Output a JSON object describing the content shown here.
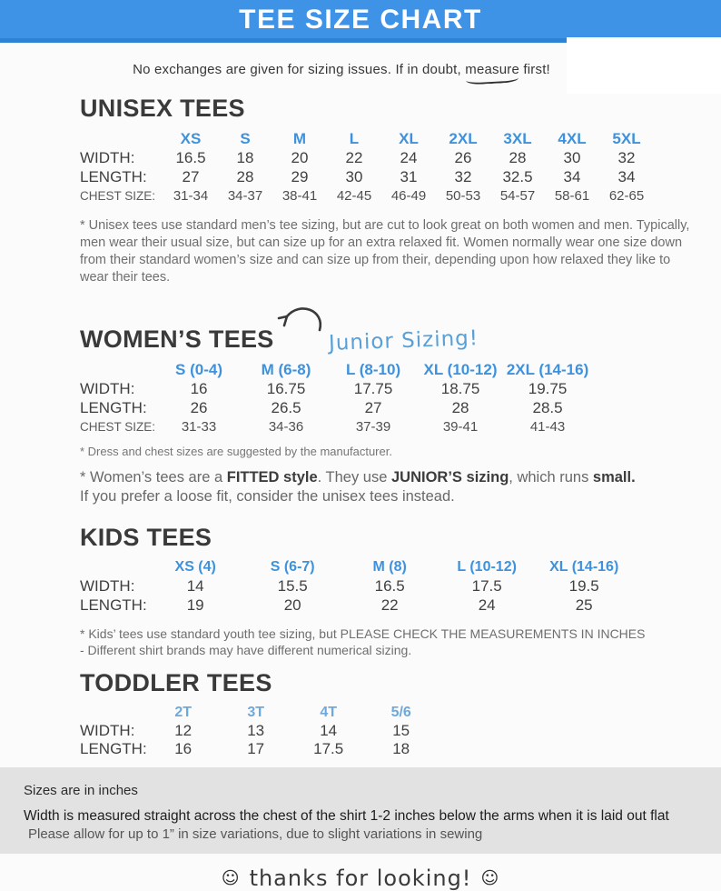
{
  "colors": {
    "header_blue": "#3e93e6",
    "header_strip_blue": "#2d82d6",
    "table_header_blue": "#3e92dd",
    "toddler_header_blue": "#6fa8dc",
    "annotation_blue": "#58a0d7",
    "heading_gray": "#3a3a3a",
    "note_gray": "#6e6e6e",
    "footer_bg_gray": "#e2e2e2"
  },
  "header": {
    "title": "TEE SIZE CHART"
  },
  "notice_parts": [
    {
      "t": "No exchanges are given for sizing issues. If in doubt, "
    },
    {
      "t": "measure",
      "u": true
    },
    {
      "t": " first!"
    }
  ],
  "sections": {
    "unisex": {
      "heading": "UNISEX TEES",
      "columns": [
        "XS",
        "S",
        "M",
        "L",
        "XL",
        "2XL",
        "3XL",
        "4XL",
        "5XL"
      ],
      "rows": [
        {
          "label": "WIDTH:",
          "values": [
            "16.5",
            "18",
            "20",
            "22",
            "24",
            "26",
            "28",
            "30",
            "32"
          ]
        },
        {
          "label": "LENGTH:",
          "values": [
            "27",
            "28",
            "29",
            "30",
            "31",
            "32",
            "32.5",
            "34",
            "34"
          ]
        },
        {
          "label": "CHEST SIZE:",
          "small": true,
          "values": [
            "31-34",
            "34-37",
            "38-41",
            "42-45",
            "46-49",
            "50-53",
            "54-57",
            "58-61",
            "62-65"
          ]
        }
      ],
      "note": "* Unisex tees use standard men’s tee sizing, but are cut to look great on both women and men. Typically, men wear their usual size, but can size up for an extra relaxed fit. Women normally wear one size down from their standard women’s size and can size up from their, depending upon how relaxed they like to wear their tees."
    },
    "womens": {
      "heading": "WOMEN’S TEES",
      "annotation": "Junior Sizing!",
      "columns": [
        "S (0-4)",
        "M (6-8)",
        "L (8-10)",
        "XL (10-12)",
        "2XL (14-16)"
      ],
      "rows": [
        {
          "label": "WIDTH:",
          "values": [
            "16",
            "16.75",
            "17.75",
            "18.75",
            "19.75"
          ]
        },
        {
          "label": "LENGTH:",
          "values": [
            "26",
            "26.5",
            "27",
            "28",
            "28.5"
          ]
        },
        {
          "label": "CHEST SIZE:",
          "small": true,
          "values": [
            "31-33",
            "34-36",
            "37-39",
            "39-41",
            "41-43"
          ]
        }
      ],
      "note_manufacturer": "* Dress and chest sizes are suggested by the manufacturer.",
      "note_fitted_parts": [
        {
          "t": "* Women’s tees are a "
        },
        {
          "t": "FITTED style",
          "b": true
        },
        {
          "t": ". They use "
        },
        {
          "t": "JUNIOR’S sizing",
          "b": true
        },
        {
          "t": ", which runs "
        },
        {
          "t": "small.",
          "b": true
        },
        {
          "t": "\nIf you prefer a loose fit, consider the unisex tees instead."
        }
      ]
    },
    "kids": {
      "heading": "KIDS TEES",
      "columns": [
        "XS (4)",
        "S (6-7)",
        "M (8)",
        "L (10-12)",
        "XL (14-16)"
      ],
      "rows": [
        {
          "label": "WIDTH:",
          "values": [
            "14",
            "15.5",
            "16.5",
            "17.5",
            "19.5"
          ]
        },
        {
          "label": "LENGTH:",
          "values": [
            "19",
            "20",
            "22",
            "24",
            "25"
          ]
        }
      ],
      "note": "* Kids’ tees use standard youth tee sizing, but PLEASE CHECK THE MEASUREMENTS IN INCHES\n- Different shirt brands may have different numerical sizing."
    },
    "toddler": {
      "heading": "TODDLER TEES",
      "columns": [
        "2T",
        "3T",
        "4T",
        "5/6"
      ],
      "rows": [
        {
          "label": "WIDTH:",
          "values": [
            "12",
            "13",
            "14",
            "15"
          ]
        },
        {
          "label": "LENGTH:",
          "values": [
            "16",
            "17",
            "17.5",
            "18"
          ]
        }
      ]
    }
  },
  "footer": {
    "lines": [
      "Sizes are in inches",
      "Width is measured straight across the chest of the shirt 1-2 inches below the arms when it is laid out flat",
      "Please allow for up to 1” in size variations, due to slight variations in sewing"
    ],
    "smiley": "☺",
    "thanks": "thanks for looking!"
  }
}
